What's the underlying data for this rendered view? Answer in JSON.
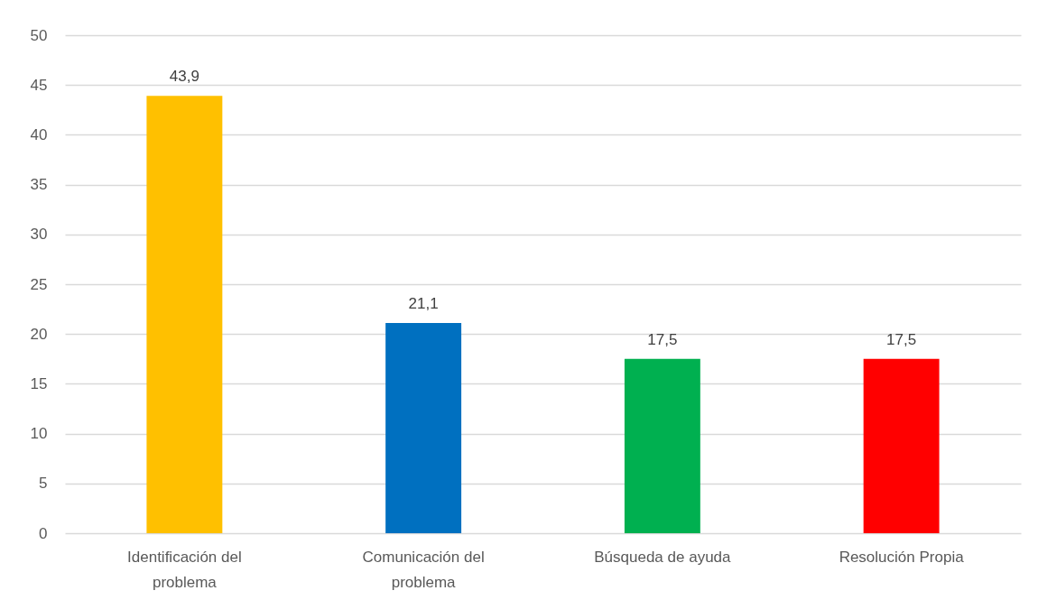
{
  "chart_data": {
    "type": "bar",
    "categories": [
      "Identificación del problema",
      "Comunicación del problema",
      "Búsqueda de ayuda",
      "Resolución Propia"
    ],
    "values": [
      43.9,
      21.1,
      17.5,
      17.5
    ],
    "colors": [
      "#ffc000",
      "#0070c0",
      "#00b050",
      "#ff0000"
    ],
    "value_labels": [
      "43,9",
      "21,1",
      "17,5",
      "17,5"
    ],
    "ylim": [
      0,
      50
    ],
    "yticks": [
      0,
      5,
      10,
      15,
      20,
      25,
      30,
      35,
      40,
      45,
      50
    ],
    "grid": "y"
  }
}
